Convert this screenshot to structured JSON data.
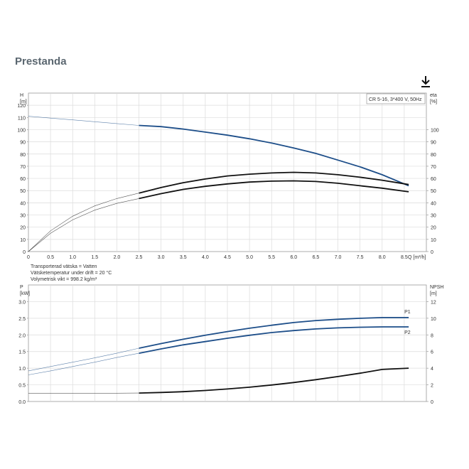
{
  "page": {
    "title": "Prestanda"
  },
  "toolbar": {
    "download_icon": "download-icon"
  },
  "colors": {
    "blue": "#1d4e89",
    "black": "#111111",
    "grid": "#dcdcdc",
    "axis": "#999999"
  },
  "chart_data": [
    {
      "type": "line",
      "title": "",
      "legend_box": "CR 5-16, 3*400 V, 50Hz",
      "xlabel": "Q [m³/h]",
      "ylabel_left": [
        "H",
        "[m]"
      ],
      "ylabel_right": [
        "eta",
        "[%]"
      ],
      "xlim": [
        0,
        9
      ],
      "xticks": [
        0,
        0.5,
        1.0,
        1.5,
        2.0,
        2.5,
        3.0,
        3.5,
        4.0,
        4.5,
        5.0,
        5.5,
        6.0,
        6.5,
        7.0,
        7.5,
        8.0,
        8.5
      ],
      "ylim_left": [
        0,
        130
      ],
      "yticks_left": [
        0,
        10,
        20,
        30,
        40,
        50,
        60,
        70,
        80,
        90,
        100,
        110,
        120
      ],
      "ylim_right": [
        0,
        130
      ],
      "yticks_right": [
        0,
        10,
        20,
        30,
        40,
        50,
        60,
        70,
        80,
        90,
        100
      ],
      "grid": true,
      "series": [
        {
          "color": "#1d4e89",
          "axis": "left",
          "split_x": 2.5,
          "x": [
            0,
            0.5,
            1.0,
            1.5,
            2.0,
            2.5,
            3.0,
            3.5,
            4.0,
            4.5,
            5.0,
            5.5,
            6.0,
            6.5,
            7.0,
            7.5,
            8.0,
            8.6
          ],
          "y": [
            111,
            109.5,
            108,
            106.5,
            105,
            103.5,
            102.5,
            100.5,
            98,
            95.5,
            92.5,
            89,
            85,
            80.5,
            75,
            69.5,
            63,
            54
          ]
        },
        {
          "color": "#111111",
          "axis": "right",
          "split_x": 2.5,
          "x": [
            0,
            0.5,
            1.0,
            1.5,
            2.0,
            2.5,
            3.0,
            3.5,
            4.0,
            4.5,
            5.0,
            5.5,
            6.0,
            6.5,
            7.0,
            7.5,
            8.0,
            8.6
          ],
          "y": [
            0,
            17,
            29,
            37.5,
            43.5,
            48,
            52.5,
            56.5,
            59.5,
            62,
            63.5,
            64.5,
            65,
            64.5,
            63,
            61,
            58.5,
            55
          ]
        },
        {
          "color": "#111111",
          "axis": "right",
          "split_x": 2.5,
          "x": [
            0,
            0.5,
            1.0,
            1.5,
            2.0,
            2.5,
            3.0,
            3.5,
            4.0,
            4.5,
            5.0,
            5.5,
            6.0,
            6.5,
            7.0,
            7.5,
            8.0,
            8.6
          ],
          "y": [
            0,
            15,
            26,
            34,
            39.5,
            43.5,
            47.5,
            51,
            53.5,
            55.5,
            57,
            57.8,
            58,
            57.5,
            56,
            54,
            52,
            49
          ]
        }
      ],
      "notes": [
        "Transporterad vätska = Vatten",
        "Vätsketemperatur under drift = 20 °C",
        "Volymetrisk vikt = 998.2 kg/m³"
      ]
    },
    {
      "type": "line",
      "title": "",
      "ylabel_left": [
        "P",
        "[kW]"
      ],
      "ylabel_right": [
        "NPSH",
        "[m]"
      ],
      "xlim": [
        0,
        9
      ],
      "ylim_left": [
        0,
        3.5
      ],
      "yticks_left": [
        "0.0",
        "0.5",
        "1.0",
        "1.5",
        "2.0",
        "2.5",
        "3.0"
      ],
      "ylim_right": [
        0,
        14
      ],
      "yticks_right": [
        0,
        2,
        4,
        6,
        8,
        10,
        12
      ],
      "grid": true,
      "series": [
        {
          "name": "P1",
          "color": "#1d4e89",
          "axis": "left",
          "split_x": 2.5,
          "x": [
            0,
            0.5,
            1.0,
            1.5,
            2.0,
            2.5,
            3.0,
            3.5,
            4.0,
            4.5,
            5.0,
            5.5,
            6.0,
            6.5,
            7.0,
            7.5,
            8.0,
            8.6
          ],
          "y": [
            0.92,
            1.05,
            1.18,
            1.31,
            1.45,
            1.6,
            1.74,
            1.87,
            1.99,
            2.1,
            2.2,
            2.29,
            2.37,
            2.43,
            2.47,
            2.5,
            2.52,
            2.52
          ]
        },
        {
          "name": "P2",
          "color": "#1d4e89",
          "axis": "left",
          "split_x": 2.5,
          "x": [
            0,
            0.5,
            1.0,
            1.5,
            2.0,
            2.5,
            3.0,
            3.5,
            4.0,
            4.5,
            5.0,
            5.5,
            6.0,
            6.5,
            7.0,
            7.5,
            8.0,
            8.6
          ],
          "y": [
            0.8,
            0.92,
            1.05,
            1.18,
            1.32,
            1.45,
            1.58,
            1.7,
            1.8,
            1.9,
            1.99,
            2.07,
            2.13,
            2.18,
            2.21,
            2.23,
            2.24,
            2.24
          ]
        },
        {
          "color": "#111111",
          "axis": "right",
          "split_x": 2.5,
          "x": [
            0,
            0.5,
            1.0,
            1.5,
            2.0,
            2.5,
            3.0,
            3.5,
            4.0,
            4.5,
            5.0,
            5.5,
            6.0,
            6.5,
            7.0,
            7.5,
            8.0,
            8.6
          ],
          "y": [
            1.0,
            1.0,
            1.0,
            1.0,
            1.0,
            1.02,
            1.08,
            1.18,
            1.32,
            1.5,
            1.72,
            1.98,
            2.28,
            2.62,
            3.0,
            3.4,
            3.85,
            4.0
          ]
        }
      ]
    }
  ]
}
